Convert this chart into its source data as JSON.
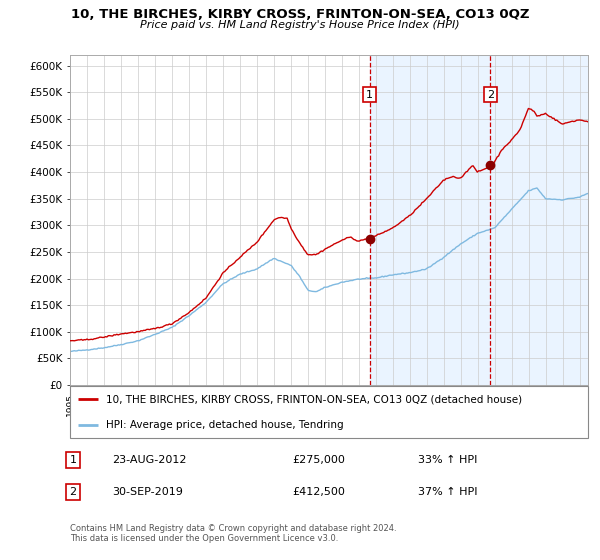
{
  "title": "10, THE BIRCHES, KIRBY CROSS, FRINTON-ON-SEA, CO13 0QZ",
  "subtitle": "Price paid vs. HM Land Registry's House Price Index (HPI)",
  "ylim": [
    0,
    620000
  ],
  "yticks": [
    0,
    50000,
    100000,
    150000,
    200000,
    250000,
    300000,
    350000,
    400000,
    450000,
    500000,
    550000,
    600000
  ],
  "ytick_labels": [
    "£0",
    "£50K",
    "£100K",
    "£150K",
    "£200K",
    "£250K",
    "£300K",
    "£350K",
    "£400K",
    "£450K",
    "£500K",
    "£550K",
    "£600K"
  ],
  "hpi_color": "#7fb9e0",
  "price_color": "#cc0000",
  "marker_color": "#8b0000",
  "vline_color": "#cc0000",
  "bg_color": "#ffffff",
  "grid_color": "#cccccc",
  "shade_color": "#ddeeff",
  "sale1_date": 2012.64,
  "sale1_price": 275000,
  "sale2_date": 2019.75,
  "sale2_price": 412500,
  "xmin": 1995,
  "xmax": 2025.5,
  "footnote": "Contains HM Land Registry data © Crown copyright and database right 2024.\nThis data is licensed under the Open Government Licence v3.0.",
  "legend_line1": "10, THE BIRCHES, KIRBY CROSS, FRINTON-ON-SEA, CO13 0QZ (detached house)",
  "legend_line2": "HPI: Average price, detached house, Tendring"
}
